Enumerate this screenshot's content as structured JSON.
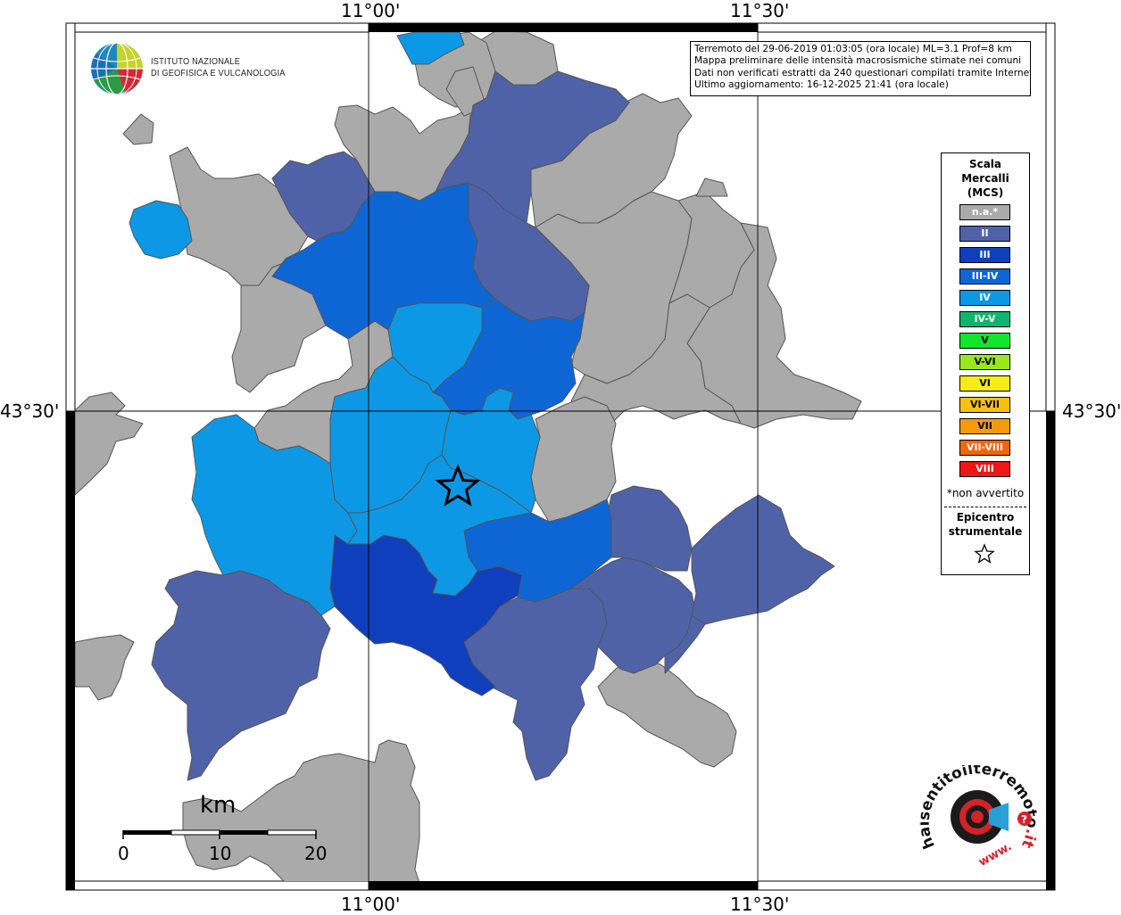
{
  "coords": {
    "top_left": "11°00'",
    "top_right": "11°30'",
    "bottom_left": "11°00'",
    "bottom_right": "11°30'",
    "left_lat": "43°30'",
    "right_lat": "43°30'"
  },
  "institute": {
    "line1": "Istituto Nazionale",
    "line2": "di Geofisica e Vulcanologia"
  },
  "info": {
    "line1": "Terremoto del 29-06-2019 01:03:05 (ora locale) ML=3.1 Prof=8 km",
    "line2": "Mappa preliminare delle intensità macrosismiche stimate nei comuni",
    "line3": "Dati non verificati estratti da 240 questionari compilati tramite Internet.",
    "line4": "Ultimo aggiornamento: 16-12-2025 21:41 (ora locale)"
  },
  "legend": {
    "title_1": "Scala",
    "title_2": "Mercalli",
    "title_3": "(MCS)",
    "items": [
      {
        "label": "n.a.*",
        "color": "#aaaaaa"
      },
      {
        "label": "II",
        "color": "#4f62a8"
      },
      {
        "label": "III",
        "color": "#0f3fbd"
      },
      {
        "label": "III-IV",
        "color": "#0d66d4"
      },
      {
        "label": "IV",
        "color": "#0d98e6"
      },
      {
        "label": "IV-V",
        "color": "#0fb46f"
      },
      {
        "label": "V",
        "color": "#13e52a"
      },
      {
        "label": "V-VI",
        "color": "#9ae61f"
      },
      {
        "label": "VI",
        "color": "#f6ec15"
      },
      {
        "label": "VI-VII",
        "color": "#f6c10e"
      },
      {
        "label": "VII",
        "color": "#f59b0b"
      },
      {
        "label": "VII-VIII",
        "color": "#f3640c"
      },
      {
        "label": "VIII",
        "color": "#ee1616"
      }
    ],
    "note": "*non avvertito",
    "epicenter_1": "Epicentro",
    "epicenter_2": "strumentale"
  },
  "scale": {
    "unit": "km",
    "tick_0": "0",
    "tick_10": "10",
    "tick_20": "20"
  },
  "hst_logo": {
    "text_main": "haisentitoilterremoto",
    "text_it": ".it",
    "text_www": "www."
  },
  "colors": {
    "na": "#aaaaaa",
    "II": "#4f62a8",
    "III": "#0f3fbd",
    "III_IV": "#0d66d4",
    "IV": "#0d98e6"
  }
}
